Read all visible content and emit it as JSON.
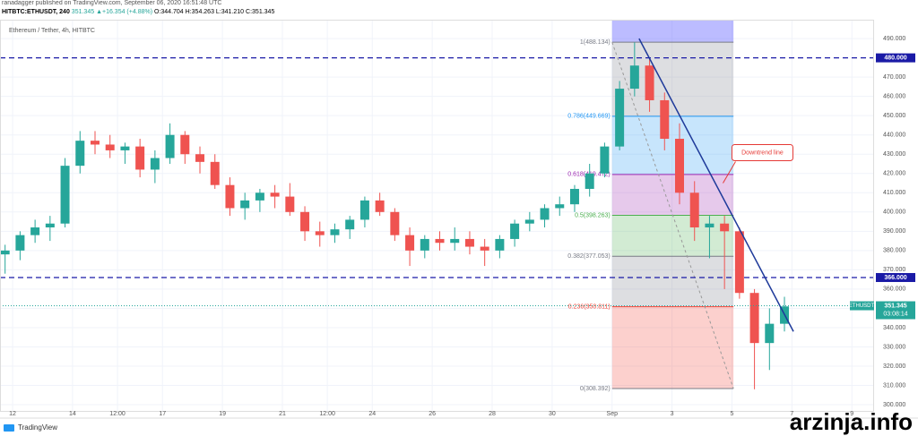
{
  "header": {
    "published": "ranadagger published on TradingView.com, September 06, 2020 16:51:48 UTC",
    "symbol": "HITBTC:ETHUSDT, 240",
    "last": "351.345",
    "change": "▲+16.354 (+4.88%)",
    "open": "O:344.704",
    "high": "H:354.263",
    "low": "L:341.210",
    "close": "C:351.345",
    "legend": "Ethereum / Tether, 4h, HITBTC"
  },
  "footer": {
    "brand": "TradingView",
    "watermark": "arzinja.info"
  },
  "chart_data": {
    "type": "candlestick",
    "up_color": "#26a69a",
    "down_color": "#ef5350",
    "x": [
      11.75,
      12.25,
      12.75,
      13.25,
      13.75,
      14.25,
      14.75,
      15.25,
      15.75,
      16.25,
      16.75,
      17.25,
      17.75,
      18.25,
      18.75,
      19.25,
      19.75,
      20.25,
      20.75,
      21.25,
      21.75,
      22.25,
      22.75,
      23.25,
      23.75,
      24.25,
      24.75,
      25.25,
      25.75,
      26.25,
      26.75,
      27.25,
      27.75,
      28.25,
      28.75,
      29.25,
      29.75,
      30.25,
      30.75,
      31.25,
      31.75,
      32.25,
      32.75,
      33.25,
      33.75,
      34.25,
      34.75,
      35.25,
      35.75,
      36.25,
      36.75,
      37.25,
      37.75
    ],
    "open": [
      378,
      380,
      388,
      392,
      394,
      424,
      437,
      435,
      432,
      434,
      422,
      428,
      440,
      430,
      426,
      414,
      402,
      406,
      410,
      408,
      400,
      390,
      388,
      391,
      396,
      406,
      400,
      388,
      380,
      386,
      384,
      386,
      382,
      380,
      386,
      394,
      396,
      402,
      404,
      412,
      420,
      434,
      464,
      476,
      458,
      438,
      410,
      392,
      394,
      390,
      358,
      332,
      342
    ],
    "high": [
      383,
      390,
      396,
      398,
      428,
      442,
      442,
      440,
      436,
      438,
      432,
      446,
      442,
      434,
      430,
      418,
      410,
      412,
      414,
      415,
      403,
      395,
      394,
      398,
      408,
      410,
      402,
      392,
      388,
      390,
      392,
      390,
      386,
      388,
      396,
      400,
      404,
      408,
      414,
      425,
      436,
      468,
      488,
      480,
      462,
      446,
      416,
      398,
      398,
      392,
      360,
      350,
      356
    ],
    "low": [
      368,
      375,
      384,
      385,
      392,
      420,
      430,
      428,
      425,
      418,
      415,
      425,
      425,
      420,
      412,
      398,
      396,
      400,
      402,
      398,
      385,
      382,
      384,
      386,
      392,
      398,
      385,
      372,
      376,
      380,
      380,
      378,
      372,
      376,
      382,
      390,
      392,
      398,
      400,
      408,
      418,
      432,
      460,
      452,
      432,
      404,
      385,
      376,
      360,
      355,
      308,
      318,
      338
    ],
    "close": [
      380,
      388,
      392,
      394,
      424,
      437,
      435,
      432,
      434,
      422,
      428,
      440,
      430,
      426,
      414,
      402,
      406,
      410,
      408,
      400,
      390,
      388,
      391,
      396,
      406,
      400,
      388,
      380,
      386,
      384,
      386,
      382,
      380,
      386,
      394,
      396,
      402,
      404,
      412,
      420,
      434,
      464,
      476,
      458,
      438,
      410,
      392,
      394,
      390,
      358,
      332,
      342,
      351
    ],
    "xlim": [
      11.58,
      40.74
    ],
    "xticks": [
      12,
      14,
      {
        "value": 15.5,
        "label": "12:00"
      },
      17,
      19,
      21,
      {
        "value": 22.5,
        "label": "12:00"
      },
      24,
      26,
      28,
      30,
      {
        "value": 32,
        "label": "Sep"
      },
      {
        "value": 34,
        "label": "3"
      },
      {
        "value": 36,
        "label": "5"
      },
      {
        "value": 38,
        "label": "7"
      },
      {
        "value": 40,
        "label": "9"
      }
    ],
    "ylim": [
      296.3,
      499.8
    ],
    "yticks": [
      {
        "value": 300,
        "label": "300.000"
      },
      {
        "value": 310,
        "label": "310.000"
      },
      {
        "value": 320,
        "label": "320.000"
      },
      {
        "value": 330,
        "label": "330.000"
      },
      {
        "value": 340,
        "label": "340.000"
      },
      {
        "value": 350,
        "label": "350.000"
      },
      {
        "value": 360,
        "label": "360.000"
      },
      {
        "value": 370,
        "label": "370.000"
      },
      {
        "value": 380,
        "label": "380.000"
      },
      {
        "value": 390,
        "label": "390.000"
      },
      {
        "value": 400,
        "label": "400.000"
      },
      {
        "value": 410,
        "label": "410.000"
      },
      {
        "value": 420,
        "label": "420.000"
      },
      {
        "value": 430,
        "label": "430.000"
      },
      {
        "value": 440,
        "label": "440.000"
      },
      {
        "value": 450,
        "label": "450.000"
      },
      {
        "value": 460,
        "label": "460.000"
      },
      {
        "value": 470,
        "label": "470.000"
      },
      {
        "value": 490,
        "label": "490.000"
      }
    ],
    "grid": true,
    "hlines": [
      {
        "value": 480,
        "label": "480.000"
      },
      {
        "value": 366,
        "label": "366.000"
      }
    ],
    "hline_color": "#1a1aa6",
    "last_price": {
      "name": "ETHUSDT",
      "value": 351.345,
      "countdown": "03:08:14"
    },
    "fib": {
      "x": [
        32,
        36.05
      ],
      "levels": [
        {
          "value": 488.134,
          "label": "1(488.134)",
          "color": "#787b86"
        },
        {
          "value": 449.669,
          "label": "0.786(449.669)",
          "color": "#2196f3"
        },
        {
          "value": 419.472,
          "label": "0.618(419.472)",
          "color": "#9c27b0"
        },
        {
          "value": 398.263,
          "label": "0.5(398.263)",
          "color": "#4caf50"
        },
        {
          "value": 377.053,
          "label": "0.382(377.053)",
          "color": "#787b86"
        },
        {
          "value": 350.811,
          "label": "0.236(350.811)",
          "color": "#f44336"
        },
        {
          "value": 308.392,
          "label": "0(308.392)",
          "color": "#787b86"
        }
      ]
    },
    "trendline": {
      "x": [
        32.9,
        38.05
      ],
      "y": [
        490,
        338
      ],
      "color": "#1e3a9a"
    },
    "annotation": {
      "text": "Downtrend line",
      "x": 35.7,
      "y": 415
    }
  }
}
